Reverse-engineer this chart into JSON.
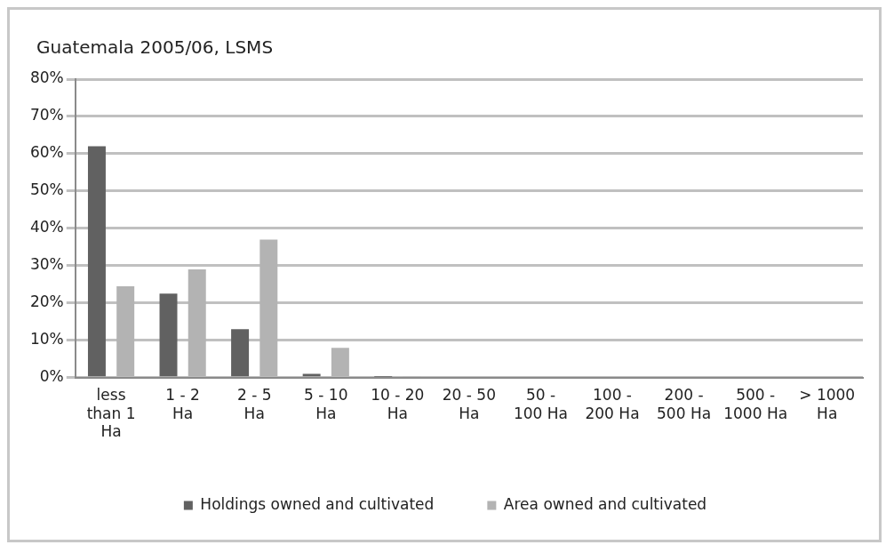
{
  "chart_data": {
    "type": "bar",
    "title": "Guatemala 2005/06, LSMS",
    "categories": [
      "less than 1 Ha",
      "1 - 2 Ha",
      "2 - 5 Ha",
      "5 - 10 Ha",
      "10 - 20 Ha",
      "20 - 50 Ha",
      "50 - 100 Ha",
      "100 - 200 Ha",
      "200 - 500 Ha",
      "500 - 1000 Ha",
      "> 1000 Ha"
    ],
    "series": [
      {
        "name": "Holdings owned and cultivated",
        "color": "#616161",
        "values": [
          62,
          22.5,
          13,
          1,
          0.2,
          0,
          0,
          0,
          0,
          0,
          0
        ]
      },
      {
        "name": "Area owned and cultivated",
        "color": "#b3b3b3",
        "values": [
          24.5,
          29,
          37,
          8,
          0.3,
          0,
          0,
          0,
          0,
          0,
          0
        ]
      }
    ],
    "ylim": [
      0,
      80
    ],
    "yticks": [
      {
        "value": 0,
        "label": "0%"
      },
      {
        "value": 10,
        "label": "10%"
      },
      {
        "value": 20,
        "label": "20%"
      },
      {
        "value": 30,
        "label": "30%"
      },
      {
        "value": 40,
        "label": "40%"
      },
      {
        "value": 50,
        "label": "50%"
      },
      {
        "value": 60,
        "label": "60%"
      },
      {
        "value": 70,
        "label": "70%"
      },
      {
        "value": 80,
        "label": "80%"
      }
    ],
    "grid": "y",
    "legend": "bottom"
  }
}
